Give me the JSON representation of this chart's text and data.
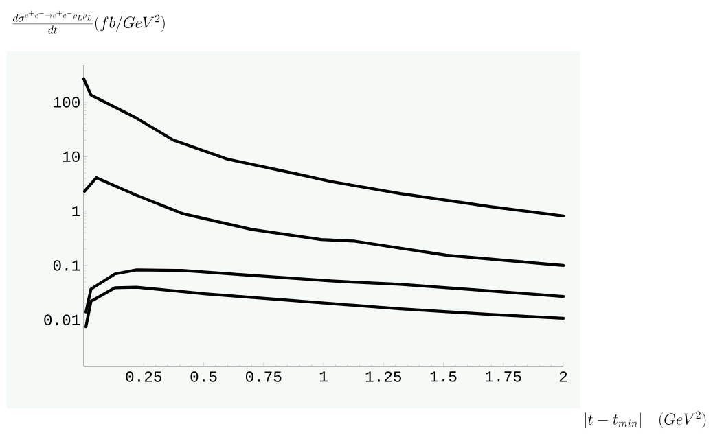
{
  "chart_data": {
    "type": "line",
    "title": "\\frac{d\\sigma^{e^+e^-\\to e^+e^-\\rho_L\\rho_L}}{dt}(fb/GeV^2)",
    "xlabel": "|t-t_{min}|\\quad(GeV^2)",
    "log": true,
    "xlim": [
      0,
      2
    ],
    "ylim": [
      0.0014,
      480
    ],
    "xticks": [
      0.25,
      0.5,
      0.75,
      1,
      1.25,
      1.5,
      1.75,
      2
    ],
    "yticks": [
      0.01,
      0.1,
      1,
      10,
      100
    ],
    "series": [
      {
        "color": "#000000",
        "x": [
          0,
          0.03,
          0.22,
          0.375,
          0.6,
          0.89,
          1.03,
          1.32,
          1.7,
          2
        ],
        "values": [
          270,
          135,
          51,
          20,
          9,
          4.8,
          3.5,
          2.1,
          1.2,
          0.81
        ]
      },
      {
        "color": "#000000",
        "x": [
          0.003,
          0.052,
          0.22,
          0.415,
          0.7,
          0.99,
          1.13,
          1.51,
          2
        ],
        "values": [
          2.3,
          4.1,
          1.95,
          0.89,
          0.46,
          0.3,
          0.28,
          0.155,
          0.1
        ]
      },
      {
        "color": "#000000",
        "x": [
          0.009,
          0.03,
          0.13,
          0.22,
          0.41,
          0.7,
          1.03,
          1.32,
          1.7,
          2
        ],
        "values": [
          0.014,
          0.037,
          0.07,
          0.083,
          0.081,
          0.066,
          0.052,
          0.045,
          0.034,
          0.027
        ]
      },
      {
        "color": "#000000",
        "x": [
          0.009,
          0.03,
          0.13,
          0.22,
          0.51,
          0.8,
          1.03,
          1.32,
          1.7,
          2
        ],
        "values": [
          0.0075,
          0.022,
          0.039,
          0.04,
          0.03,
          0.024,
          0.02,
          0.016,
          0.0126,
          0.0107
        ]
      }
    ]
  }
}
